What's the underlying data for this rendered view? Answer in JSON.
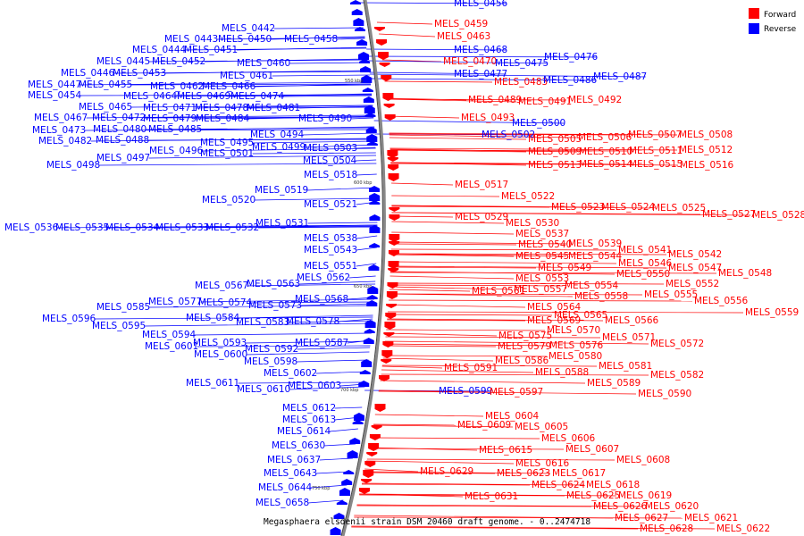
{
  "caption": "Megasphaera elsdenii strain DSM 20460 draft genome. - 0..2474718",
  "legend": [
    {
      "label": "Forward",
      "color": "#ff0000"
    },
    {
      "label": "Reverse",
      "color": "#0000ff"
    }
  ],
  "scale_ticks": [
    "550 kbp",
    "600 kbp",
    "650 kbp",
    "700 kbp",
    "750 kbp"
  ],
  "labels": [
    {
      "t": "MELS_0456",
      "s": "r"
    },
    {
      "t": "MELS_0459",
      "s": "f"
    },
    {
      "t": "MELS_0463",
      "s": "f"
    },
    {
      "t": "MELS_0442",
      "s": "r"
    },
    {
      "t": "MELS_0443",
      "s": "r"
    },
    {
      "t": "MELS_0450",
      "s": "r"
    },
    {
      "t": "MELS_0458",
      "s": "r"
    },
    {
      "t": "MELS_0444",
      "s": "r"
    },
    {
      "t": "MELS_0451",
      "s": "r"
    },
    {
      "t": "MELS_0468",
      "s": "r"
    },
    {
      "t": "MELS_0445",
      "s": "r"
    },
    {
      "t": "MELS_0452",
      "s": "r"
    },
    {
      "t": "MELS_0460",
      "s": "r"
    },
    {
      "t": "MELS_0470",
      "s": "f"
    },
    {
      "t": "MELS_0475",
      "s": "r"
    },
    {
      "t": "MELS_0476",
      "s": "r"
    },
    {
      "t": "MELS_0446",
      "s": "r"
    },
    {
      "t": "MELS_0453",
      "s": "r"
    },
    {
      "t": "MELS_0461",
      "s": "r"
    },
    {
      "t": "MELS_0477",
      "s": "r"
    },
    {
      "t": "MELS_0447",
      "s": "r"
    },
    {
      "t": "MELS_0455",
      "s": "r"
    },
    {
      "t": "MELS_0462",
      "s": "r"
    },
    {
      "t": "MELS_0466",
      "s": "r"
    },
    {
      "t": "MELS_0483",
      "s": "f"
    },
    {
      "t": "MELS_0486",
      "s": "r"
    },
    {
      "t": "MELS_0487",
      "s": "r"
    },
    {
      "t": "MELS_0454",
      "s": "r"
    },
    {
      "t": "MELS_0464",
      "s": "r"
    },
    {
      "t": "MELS_0469",
      "s": "r"
    },
    {
      "t": "MELS_0474",
      "s": "r"
    },
    {
      "t": "MELS_0489",
      "s": "f"
    },
    {
      "t": "MELS_0491",
      "s": "f"
    },
    {
      "t": "MELS_0492",
      "s": "f"
    },
    {
      "t": "MELS_0465",
      "s": "r"
    },
    {
      "t": "MELS_0471",
      "s": "r"
    },
    {
      "t": "MELS_0478",
      "s": "r"
    },
    {
      "t": "MELS_0481",
      "s": "r"
    },
    {
      "t": "MELS_0467",
      "s": "r"
    },
    {
      "t": "MELS_0472",
      "s": "r"
    },
    {
      "t": "MELS_0479",
      "s": "r"
    },
    {
      "t": "MELS_0484",
      "s": "r"
    },
    {
      "t": "MELS_0490",
      "s": "r"
    },
    {
      "t": "MELS_0493",
      "s": "f"
    },
    {
      "t": "MELS_0500",
      "s": "r"
    },
    {
      "t": "MELS_0473",
      "s": "r"
    },
    {
      "t": "MELS_0480",
      "s": "r"
    },
    {
      "t": "MELS_0485",
      "s": "r"
    },
    {
      "t": "MELS_0502",
      "s": "r"
    },
    {
      "t": "MELS_0494",
      "s": "r"
    },
    {
      "t": "MELS_0482",
      "s": "r"
    },
    {
      "t": "MELS_0488",
      "s": "r"
    },
    {
      "t": "MELS_0495",
      "s": "r"
    },
    {
      "t": "MELS_0499",
      "s": "r"
    },
    {
      "t": "MELS_0503",
      "s": "r"
    },
    {
      "t": "MELS_0505",
      "s": "f"
    },
    {
      "t": "MELS_0506",
      "s": "f"
    },
    {
      "t": "MELS_0507",
      "s": "f"
    },
    {
      "t": "MELS_0508",
      "s": "f"
    },
    {
      "t": "MELS_0496",
      "s": "r"
    },
    {
      "t": "MELS_0501",
      "s": "r"
    },
    {
      "t": "MELS_0509",
      "s": "f"
    },
    {
      "t": "MELS_0510",
      "s": "f"
    },
    {
      "t": "MELS_0511",
      "s": "f"
    },
    {
      "t": "MELS_0512",
      "s": "f"
    },
    {
      "t": "MELS_0497",
      "s": "r"
    },
    {
      "t": "MELS_0504",
      "s": "r"
    },
    {
      "t": "MELS_0498",
      "s": "r"
    },
    {
      "t": "MELS_0513",
      "s": "f"
    },
    {
      "t": "MELS_0514",
      "s": "f"
    },
    {
      "t": "MELS_0515",
      "s": "f"
    },
    {
      "t": "MELS_0516",
      "s": "f"
    },
    {
      "t": "MELS_0518",
      "s": "r"
    },
    {
      "t": "MELS_0517",
      "s": "f"
    },
    {
      "t": "MELS_0519",
      "s": "r"
    },
    {
      "t": "MELS_0522",
      "s": "f"
    },
    {
      "t": "MELS_0520",
      "s": "r"
    },
    {
      "t": "MELS_0521",
      "s": "r"
    },
    {
      "t": "MELS_0523",
      "s": "f"
    },
    {
      "t": "MELS_0524",
      "s": "f"
    },
    {
      "t": "MELS_0525",
      "s": "f"
    },
    {
      "t": "MELS_0529",
      "s": "f"
    },
    {
      "t": "MELS_0527",
      "s": "f"
    },
    {
      "t": "MELS_0528",
      "s": "f"
    },
    {
      "t": "MELS_0531",
      "s": "r"
    },
    {
      "t": "MELS_0530",
      "s": "f"
    },
    {
      "t": "MELS_0536",
      "s": "r"
    },
    {
      "t": "MELS_0535",
      "s": "r"
    },
    {
      "t": "MELS_0534",
      "s": "r"
    },
    {
      "t": "MELS_0533",
      "s": "r"
    },
    {
      "t": "MELS_0532",
      "s": "r"
    },
    {
      "t": "MELS_0537",
      "s": "f"
    },
    {
      "t": "MELS_0538",
      "s": "r"
    },
    {
      "t": "MELS_0540",
      "s": "f"
    },
    {
      "t": "MELS_0539",
      "s": "f"
    },
    {
      "t": "MELS_0543",
      "s": "r"
    },
    {
      "t": "MELS_0541",
      "s": "f"
    },
    {
      "t": "MELS_0545",
      "s": "f"
    },
    {
      "t": "MELS_0544",
      "s": "f"
    },
    {
      "t": "MELS_0542",
      "s": "f"
    },
    {
      "t": "MELS_0546",
      "s": "f"
    },
    {
      "t": "MELS_0551",
      "s": "r"
    },
    {
      "t": "MELS_0549",
      "s": "f"
    },
    {
      "t": "MELS_0547",
      "s": "f"
    },
    {
      "t": "MELS_0550",
      "s": "f"
    },
    {
      "t": "MELS_0548",
      "s": "f"
    },
    {
      "t": "MELS_0562",
      "s": "r"
    },
    {
      "t": "MELS_0553",
      "s": "f"
    },
    {
      "t": "MELS_0552",
      "s": "f"
    },
    {
      "t": "MELS_0567",
      "s": "r"
    },
    {
      "t": "MELS_0563",
      "s": "r"
    },
    {
      "t": "MELS_0554",
      "s": "f"
    },
    {
      "t": "MELS_0561",
      "s": "f"
    },
    {
      "t": "MELS_0557",
      "s": "f"
    },
    {
      "t": "MELS_0555",
      "s": "f"
    },
    {
      "t": "MELS_0568",
      "s": "r"
    },
    {
      "t": "MELS_0558",
      "s": "f"
    },
    {
      "t": "MELS_0556",
      "s": "f"
    },
    {
      "t": "MELS_0585",
      "s": "r"
    },
    {
      "t": "MELS_0577",
      "s": "r"
    },
    {
      "t": "MELS_0574",
      "s": "r"
    },
    {
      "t": "MELS_0573",
      "s": "r"
    },
    {
      "t": "MELS_0564",
      "s": "f"
    },
    {
      "t": "MELS_0559",
      "s": "f"
    },
    {
      "t": "MELS_0596",
      "s": "r"
    },
    {
      "t": "MELS_0584",
      "s": "r"
    },
    {
      "t": "MELS_0565",
      "s": "f"
    },
    {
      "t": "MELS_0583",
      "s": "r"
    },
    {
      "t": "MELS_0578",
      "s": "r"
    },
    {
      "t": "MELS_0569",
      "s": "f"
    },
    {
      "t": "MELS_0566",
      "s": "f"
    },
    {
      "t": "MELS_0595",
      "s": "r"
    },
    {
      "t": "MELS_0570",
      "s": "f"
    },
    {
      "t": "MELS_0594",
      "s": "r"
    },
    {
      "t": "MELS_0575",
      "s": "f"
    },
    {
      "t": "MELS_0571",
      "s": "f"
    },
    {
      "t": "MELS_0593",
      "s": "r"
    },
    {
      "t": "MELS_0587",
      "s": "r"
    },
    {
      "t": "MELS_0579",
      "s": "f"
    },
    {
      "t": "MELS_0576",
      "s": "f"
    },
    {
      "t": "MELS_0572",
      "s": "f"
    },
    {
      "t": "MELS_0601",
      "s": "r"
    },
    {
      "t": "MELS_0592",
      "s": "r"
    },
    {
      "t": "MELS_0600",
      "s": "r"
    },
    {
      "t": "MELS_0580",
      "s": "f"
    },
    {
      "t": "MELS_0598",
      "s": "r"
    },
    {
      "t": "MELS_0586",
      "s": "f"
    },
    {
      "t": "MELS_0581",
      "s": "f"
    },
    {
      "t": "MELS_0591",
      "s": "f"
    },
    {
      "t": "MELS_0588",
      "s": "f"
    },
    {
      "t": "MELS_0582",
      "s": "f"
    },
    {
      "t": "MELS_0602",
      "s": "r"
    },
    {
      "t": "MELS_0589",
      "s": "f"
    },
    {
      "t": "MELS_0611",
      "s": "r"
    },
    {
      "t": "MELS_0603",
      "s": "r"
    },
    {
      "t": "MELS_0610",
      "s": "r"
    },
    {
      "t": "MELS_0599",
      "s": "r"
    },
    {
      "t": "MELS_0597",
      "s": "f"
    },
    {
      "t": "MELS_0590",
      "s": "f"
    },
    {
      "t": "MELS_0612",
      "s": "r"
    },
    {
      "t": "MELS_0604",
      "s": "f"
    },
    {
      "t": "MELS_0613",
      "s": "r"
    },
    {
      "t": "MELS_0609",
      "s": "f"
    },
    {
      "t": "MELS_0605",
      "s": "f"
    },
    {
      "t": "MELS_0614",
      "s": "r"
    },
    {
      "t": "MELS_0606",
      "s": "f"
    },
    {
      "t": "MELS_0630",
      "s": "r"
    },
    {
      "t": "MELS_0615",
      "s": "f"
    },
    {
      "t": "MELS_0607",
      "s": "f"
    },
    {
      "t": "MELS_0637",
      "s": "r"
    },
    {
      "t": "MELS_0616",
      "s": "f"
    },
    {
      "t": "MELS_0608",
      "s": "f"
    },
    {
      "t": "MELS_0643",
      "s": "r"
    },
    {
      "t": "MELS_0629",
      "s": "f"
    },
    {
      "t": "MELS_0623",
      "s": "f"
    },
    {
      "t": "MELS_0617",
      "s": "f"
    },
    {
      "t": "MELS_0644",
      "s": "r"
    },
    {
      "t": "MELS_0624",
      "s": "f"
    },
    {
      "t": "MELS_0618",
      "s": "f"
    },
    {
      "t": "MELS_0631",
      "s": "f"
    },
    {
      "t": "MELS_0625",
      "s": "f"
    },
    {
      "t": "MELS_0619",
      "s": "f"
    },
    {
      "t": "MELS_0658",
      "s": "r"
    },
    {
      "t": "MELS_0626",
      "s": "f"
    },
    {
      "t": "MELS_0620",
      "s": "f"
    },
    {
      "t": "MELS_0627",
      "s": "f"
    },
    {
      "t": "MELS_0621",
      "s": "f"
    },
    {
      "t": "MELS_0628",
      "s": "f"
    },
    {
      "t": "MELS_0622",
      "s": "f"
    }
  ]
}
